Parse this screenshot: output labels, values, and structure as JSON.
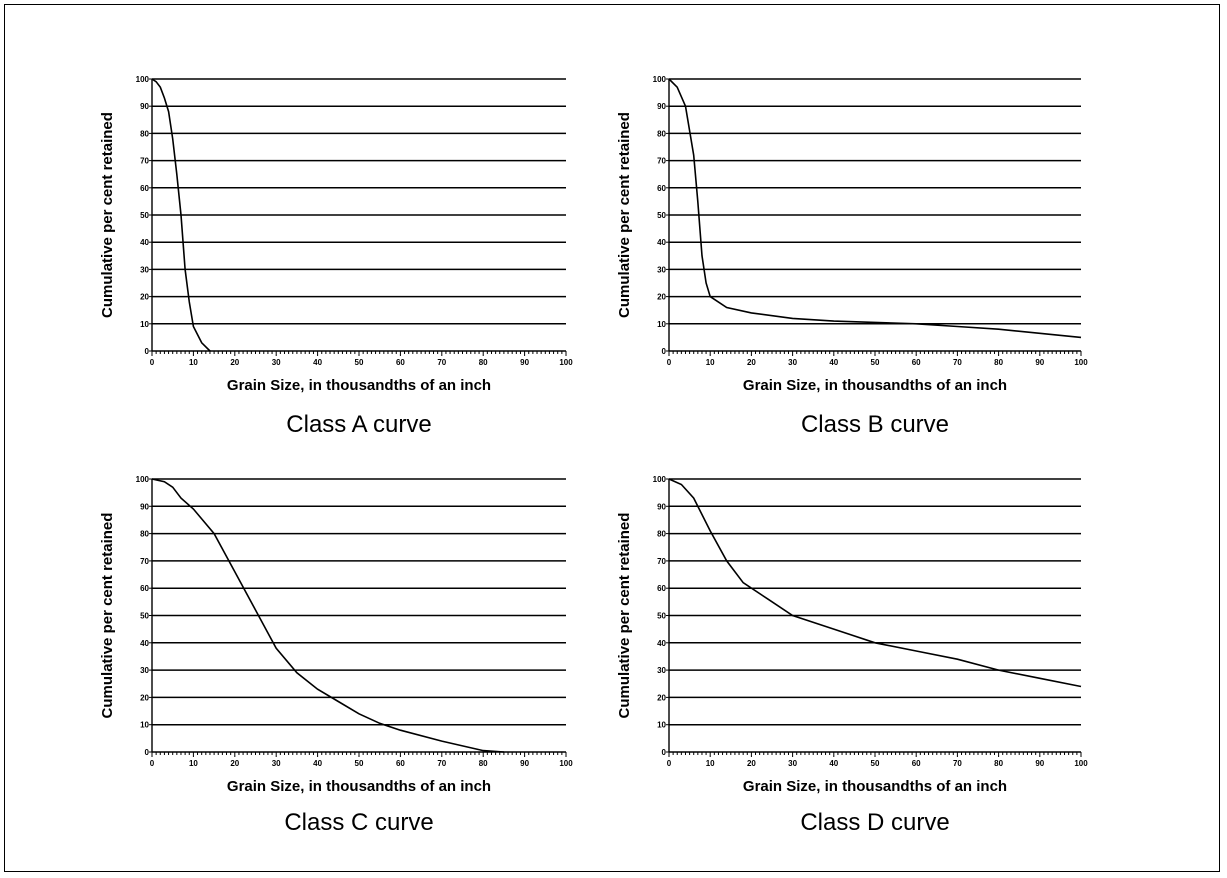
{
  "chart_data": [
    {
      "type": "line",
      "caption": "Class A curve",
      "xlabel": "Grain Size, in thousandths of an inch",
      "ylabel": "Cumulative per cent retained",
      "xlim": [
        0,
        100
      ],
      "ylim": [
        0,
        100
      ],
      "xticks": [
        0,
        10,
        20,
        30,
        40,
        50,
        60,
        70,
        80,
        90,
        100
      ],
      "yticks": [
        0,
        10,
        20,
        30,
        40,
        50,
        60,
        70,
        80,
        90,
        100
      ],
      "grid": "horizontal",
      "series": [
        {
          "x": [
            0,
            1,
            2,
            3,
            4,
            5,
            6,
            7,
            8,
            9,
            10,
            12,
            14
          ],
          "y": [
            100,
            99,
            97,
            93,
            88,
            78,
            65,
            50,
            30,
            18,
            9,
            3,
            0
          ]
        }
      ]
    },
    {
      "type": "line",
      "caption": "Class B curve",
      "xlabel": "Grain Size, in thousandths of an inch",
      "ylabel": "Cumulative per cent retained",
      "xlim": [
        0,
        100
      ],
      "ylim": [
        0,
        100
      ],
      "xticks": [
        0,
        10,
        20,
        30,
        40,
        50,
        60,
        70,
        80,
        90,
        100
      ],
      "yticks": [
        0,
        10,
        20,
        30,
        40,
        50,
        60,
        70,
        80,
        90,
        100
      ],
      "grid": "horizontal",
      "series": [
        {
          "x": [
            0,
            2,
            4,
            6,
            7,
            8,
            9,
            10,
            14,
            20,
            30,
            40,
            50,
            60,
            70,
            80,
            90,
            100
          ],
          "y": [
            100,
            97,
            90,
            72,
            55,
            35,
            25,
            20,
            16,
            14,
            12,
            11,
            10.5,
            10,
            9,
            8,
            6.5,
            5
          ]
        }
      ]
    },
    {
      "type": "line",
      "caption": "Class C curve",
      "xlabel": "Grain Size, in thousandths of an inch",
      "ylabel": "Cumulative per cent retained",
      "xlim": [
        0,
        100
      ],
      "ylim": [
        0,
        100
      ],
      "xticks": [
        0,
        10,
        20,
        30,
        40,
        50,
        60,
        70,
        80,
        90,
        100
      ],
      "yticks": [
        0,
        10,
        20,
        30,
        40,
        50,
        60,
        70,
        80,
        90,
        100
      ],
      "grid": "horizontal",
      "series": [
        {
          "x": [
            0,
            3,
            5,
            7,
            10,
            15,
            20,
            25,
            30,
            35,
            40,
            45,
            50,
            55,
            60,
            70,
            80,
            85
          ],
          "y": [
            100,
            99,
            97,
            93,
            89,
            80,
            66,
            52,
            38,
            29,
            23,
            18.5,
            14,
            10.5,
            8,
            4,
            0.5,
            0
          ]
        }
      ]
    },
    {
      "type": "line",
      "caption": "Class D curve",
      "xlabel": "Grain Size, in thousandths of an inch",
      "ylabel": "Cumulative per cent retained",
      "xlim": [
        0,
        100
      ],
      "ylim": [
        0,
        100
      ],
      "xticks": [
        0,
        10,
        20,
        30,
        40,
        50,
        60,
        70,
        80,
        90,
        100
      ],
      "yticks": [
        0,
        10,
        20,
        30,
        40,
        50,
        60,
        70,
        80,
        90,
        100
      ],
      "grid": "horizontal",
      "series": [
        {
          "x": [
            0,
            3,
            6,
            10,
            14,
            18,
            24,
            30,
            40,
            50,
            60,
            70,
            80,
            90,
            100
          ],
          "y": [
            100,
            98,
            93,
            81,
            70,
            62,
            56,
            50,
            45,
            40,
            37,
            34,
            30,
            27,
            24
          ]
        }
      ]
    }
  ]
}
